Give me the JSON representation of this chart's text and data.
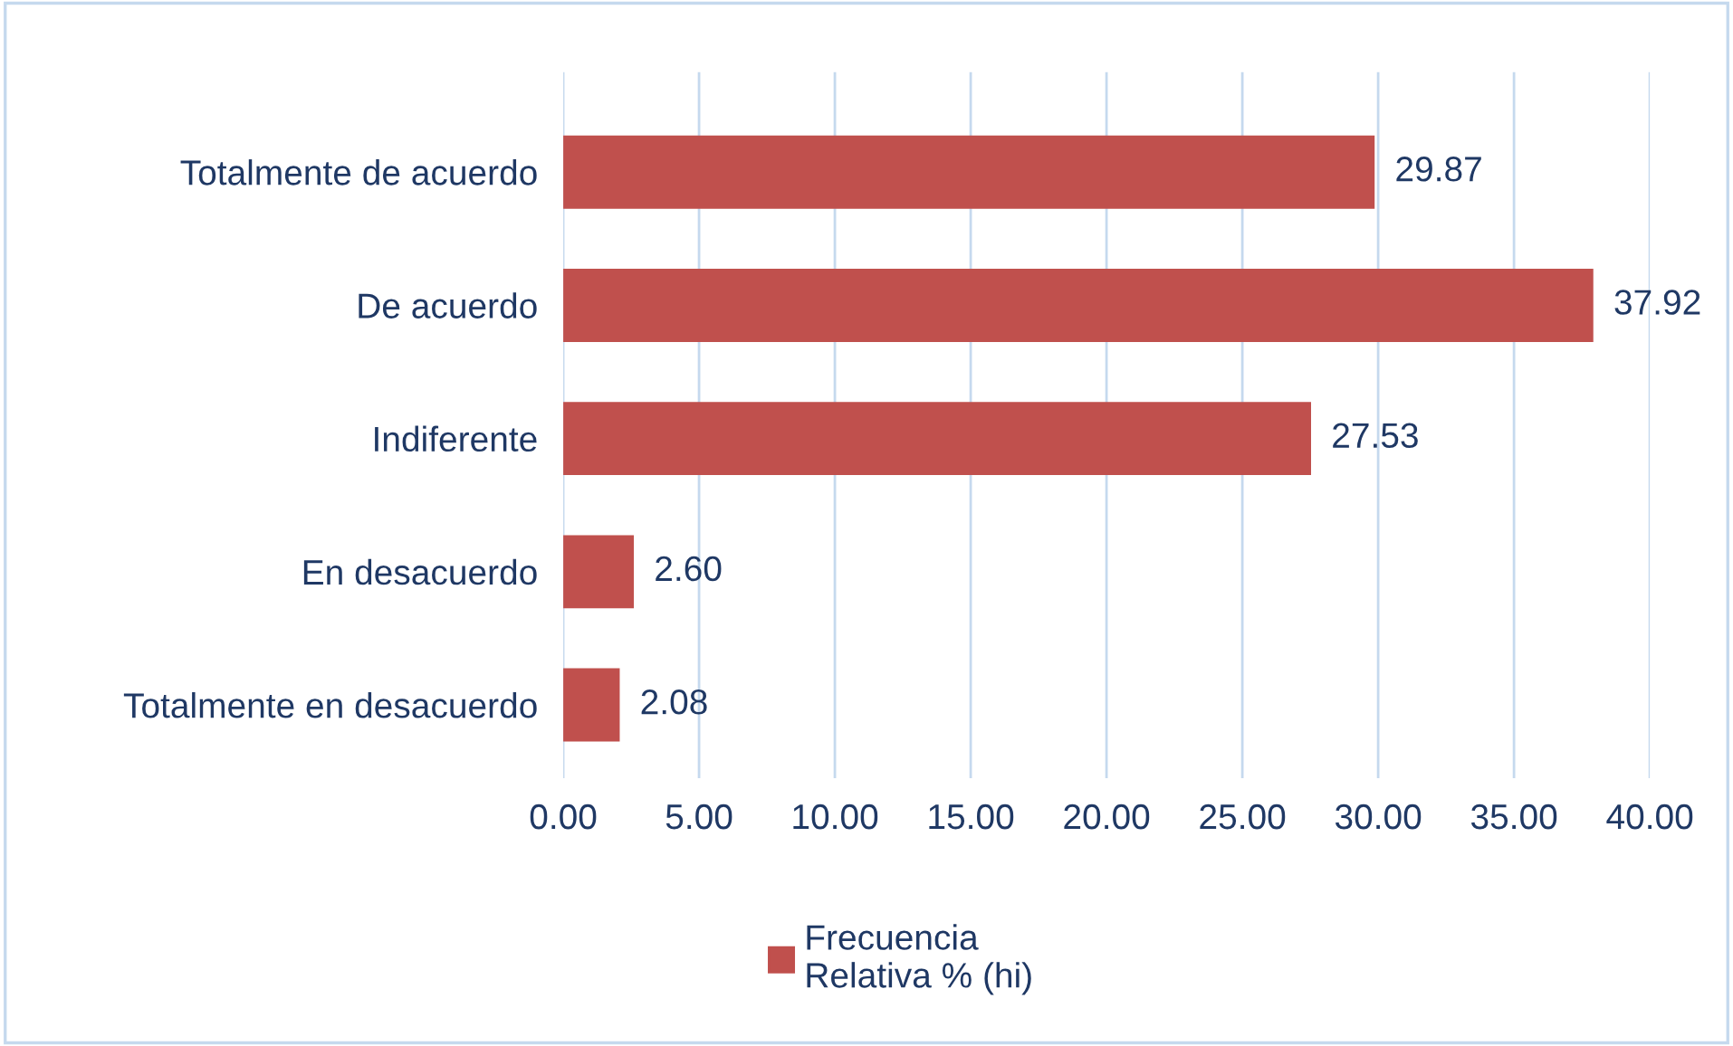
{
  "chart_data": {
    "type": "bar",
    "orientation": "horizontal",
    "categories": [
      "Totalmente de acuerdo",
      "De acuerdo",
      "Indiferente",
      "En desacuerdo",
      "Totalmente en desacuerdo"
    ],
    "series": [
      {
        "name": "Frecuencia\nRelativa % (hi)",
        "color": "#c0504d",
        "values": [
          29.87,
          37.92,
          27.53,
          2.6,
          2.08
        ]
      }
    ],
    "value_labels": [
      "29.87",
      "37.92",
      "27.53",
      "2.60",
      "2.08"
    ],
    "xlim": [
      0,
      40
    ],
    "xticks": [
      {
        "value": 0,
        "label": "0.00"
      },
      {
        "value": 5,
        "label": "5.00"
      },
      {
        "value": 10,
        "label": "10.00"
      },
      {
        "value": 15,
        "label": "15.00"
      },
      {
        "value": 20,
        "label": "20.00"
      },
      {
        "value": 25,
        "label": "25.00"
      },
      {
        "value": 30,
        "label": "30.00"
      },
      {
        "value": 35,
        "label": "35.00"
      },
      {
        "value": 40,
        "label": "40.00"
      }
    ],
    "grid": "x",
    "legend": "bottom"
  }
}
